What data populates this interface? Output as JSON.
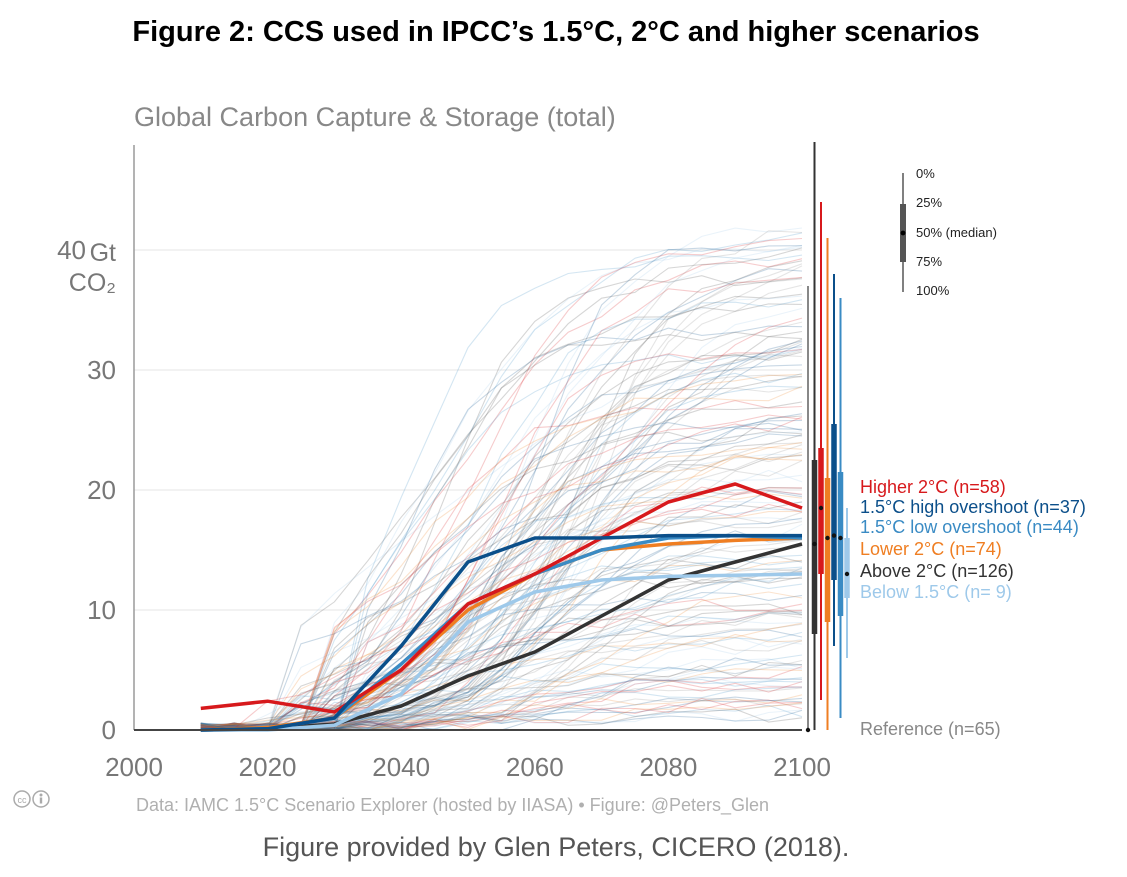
{
  "figure_title": "Figure 2: CCS used in IPCC’s 1.5°C, 2°C and higher scenarios",
  "caption": "Figure provided by Glen Peters, CICERO (2018).",
  "credit": "Data: IAMC 1.5°C Scenario Explorer (hosted by IIASA)  •  Figure: @Peters_Glen",
  "chart_data": {
    "type": "line",
    "title": "Global Carbon Capture & Storage (total)",
    "ylabel_line1": "Gt",
    "ylabel_line2": "CO₂",
    "xlim": [
      2000,
      2100
    ],
    "ylim": [
      0,
      48
    ],
    "x_ticks": [
      2000,
      2020,
      2040,
      2060,
      2080,
      2100
    ],
    "x_tick_labels": [
      "2000",
      "2020",
      "2040",
      "2060",
      "2080",
      "2100"
    ],
    "y_ticks": [
      0,
      10,
      20,
      30,
      40
    ],
    "y_tick_labels": [
      "0",
      "10",
      "20",
      "30",
      "40"
    ],
    "grid": true,
    "x": [
      2010,
      2020,
      2030,
      2040,
      2050,
      2060,
      2070,
      2080,
      2090,
      2100
    ],
    "series": [
      {
        "name": "Higher 2°C (n=58)",
        "color": "#d7191c",
        "values": [
          1.8,
          2.4,
          1.5,
          5.0,
          10.5,
          13.0,
          16.0,
          19.0,
          20.5,
          18.5
        ]
      },
      {
        "name": "1.5°C high overshoot (n=37)",
        "color": "#0b4f8a",
        "values": [
          0.0,
          0.1,
          1.0,
          7.0,
          14.0,
          16.0,
          16.0,
          16.2,
          16.2,
          16.2
        ]
      },
      {
        "name": "1.5°C low overshoot (n=44)",
        "color": "#3a8bc4",
        "values": [
          0.0,
          0.1,
          1.0,
          5.5,
          10.5,
          13.0,
          15.0,
          16.0,
          16.2,
          16.0
        ]
      },
      {
        "name": "Lower 2°C (n=74)",
        "color": "#ef7e22",
        "values": [
          0.0,
          0.2,
          1.0,
          5.0,
          10.0,
          13.0,
          15.0,
          15.5,
          15.8,
          16.0
        ]
      },
      {
        "name": "Above 2°C (n=126)",
        "color": "#333333",
        "values": [
          0.0,
          0.1,
          0.5,
          2.0,
          4.5,
          6.5,
          9.5,
          12.5,
          14.0,
          15.5
        ]
      },
      {
        "name": "Below 1.5°C (n= 9)",
        "color": "#9ec9ea",
        "values": [
          0.0,
          0.0,
          0.4,
          3.0,
          9.0,
          11.5,
          12.5,
          12.8,
          12.9,
          13.0
        ]
      }
    ],
    "reference_label": "Reference (n=65)",
    "reference_color": "#888888",
    "quantile_key": [
      "0%",
      "25%",
      "50% (median)",
      "75%",
      "100%"
    ],
    "ranges_2100": [
      {
        "name": "Reference",
        "color": "#888888",
        "min": 0,
        "q25": 0,
        "median": 0,
        "q75": 0,
        "max": 37
      },
      {
        "name": "Above 2°C",
        "color": "#333333",
        "min": 0,
        "q25": 8,
        "median": 15.5,
        "q75": 22.5,
        "max": 49
      },
      {
        "name": "Higher 2°C",
        "color": "#d7191c",
        "min": 2.5,
        "q25": 13,
        "median": 18.5,
        "q75": 23.5,
        "max": 44
      },
      {
        "name": "Lower 2°C",
        "color": "#ef7e22",
        "min": 0,
        "q25": 9,
        "median": 16,
        "q75": 21,
        "max": 41
      },
      {
        "name": "1.5°C high overshoot",
        "color": "#0b4f8a",
        "min": 7,
        "q25": 12.5,
        "median": 16.2,
        "q75": 25.5,
        "max": 38
      },
      {
        "name": "1.5°C low overshoot",
        "color": "#3a8bc4",
        "min": 1,
        "q25": 9.5,
        "median": 16,
        "q75": 21.5,
        "max": 36
      },
      {
        "name": "Below 1.5°C",
        "color": "#9ec9ea",
        "min": 6,
        "q25": 11,
        "median": 13,
        "q75": 16,
        "max": 18.5
      }
    ]
  }
}
